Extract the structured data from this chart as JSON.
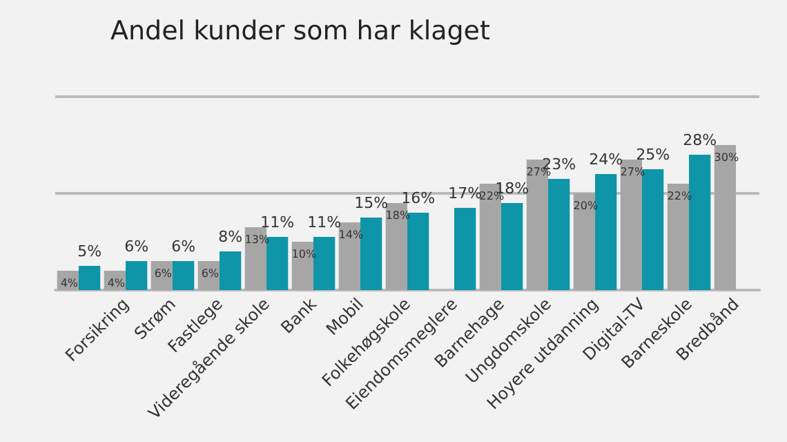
{
  "chart_data": {
    "type": "bar",
    "title": "Andel kunder som har klaget",
    "categories": [
      null,
      "Forsikring",
      "Strøm",
      "Fastlege",
      "Videregående skole",
      "Bank",
      "Mobil",
      "Folkehøgskole",
      "Eiendomsmeglere",
      "Barnehage",
      "Ungdomskole",
      "Hoyere utdanning",
      "Digital-TV",
      "Barneskole",
      "Bredbånd"
    ],
    "series": [
      {
        "color": "#a6a6a6",
        "values": [
          4,
          4,
          6,
          6,
          13,
          10,
          14,
          18,
          null,
          22,
          27,
          20,
          27,
          22,
          30
        ],
        "value_labels": [
          "4%",
          "4%",
          "6%",
          "6%",
          "13%",
          "10%",
          "14%",
          "18%",
          null,
          "22%",
          "27%",
          "20%",
          "27%",
          "22%",
          "30%"
        ]
      },
      {
        "color": "#0e95a8",
        "values": [
          5,
          6,
          6,
          8,
          11,
          11,
          15,
          16,
          17,
          18,
          23,
          24,
          25,
          28,
          null
        ],
        "value_labels": [
          "5%",
          "6%",
          "6%",
          "8%",
          "11%",
          "11%",
          "15%",
          "16%",
          "17%",
          "18%",
          "23%",
          "24%",
          "25%",
          "28%",
          null
        ]
      }
    ],
    "ylim": [
      0,
      40
    ],
    "ref_lines": [
      {
        "axis": "y",
        "value": 20,
        "color": "#bbbbbb"
      },
      {
        "axis": "y",
        "value": 40,
        "color": "#bbbbbb"
      }
    ],
    "tick_labels": "x"
  }
}
